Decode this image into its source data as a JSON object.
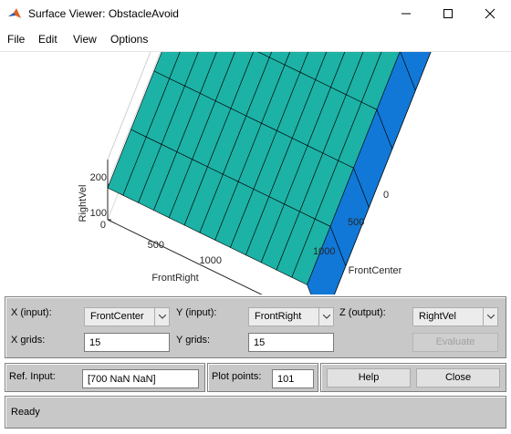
{
  "window": {
    "title": "Surface Viewer: ObstacleAvoid",
    "icon": "matlab-icon"
  },
  "menu": [
    "File",
    "Edit",
    "View",
    "Options"
  ],
  "plot": {
    "zlabel": "RightVel",
    "xlabel": "FrontCenter",
    "ylabel": "FrontRight",
    "z_ticks": [
      "100",
      "200"
    ],
    "y_ticks": [
      "0",
      "500",
      "1000"
    ],
    "x_ticks": [
      "0",
      "500",
      "1000"
    ]
  },
  "chart_data": {
    "type": "surface",
    "xlabel": "FrontCenter",
    "ylabel": "FrontRight",
    "zlabel": "RightVel",
    "xlim": [
      0,
      1400
    ],
    "ylim": [
      0,
      1400
    ],
    "zlim": [
      100,
      270
    ],
    "x_ticks": [
      0,
      500,
      1000
    ],
    "y_ticks": [
      0,
      500,
      1000
    ],
    "z_ticks": [
      100,
      200
    ],
    "grid_x": [
      0,
      100,
      200,
      300,
      400,
      500,
      600,
      700,
      800,
      900,
      1000,
      1100,
      1200,
      1300,
      1400
    ],
    "grid_y": [
      0,
      100,
      200,
      300,
      400,
      500,
      600,
      700,
      800,
      900,
      1000,
      1100,
      1200,
      1300,
      1400
    ],
    "surface_z_by_y_row": [
      [
        250,
        250,
        250,
        250,
        250,
        240,
        210,
        210,
        210,
        190,
        190,
        190,
        190,
        190,
        190
      ],
      [
        250,
        250,
        250,
        250,
        250,
        240,
        210,
        210,
        210,
        190,
        190,
        190,
        190,
        190,
        190
      ],
      [
        250,
        250,
        250,
        250,
        250,
        240,
        210,
        210,
        210,
        190,
        190,
        190,
        190,
        190,
        190
      ],
      [
        250,
        250,
        250,
        250,
        250,
        240,
        210,
        210,
        210,
        190,
        190,
        190,
        190,
        190,
        190
      ],
      [
        250,
        250,
        250,
        250,
        250,
        240,
        210,
        210,
        210,
        190,
        190,
        190,
        190,
        190,
        190
      ],
      [
        250,
        250,
        250,
        250,
        250,
        240,
        210,
        210,
        210,
        190,
        190,
        190,
        190,
        190,
        190
      ],
      [
        250,
        250,
        250,
        250,
        250,
        240,
        210,
        210,
        210,
        190,
        190,
        190,
        190,
        190,
        190
      ],
      [
        250,
        250,
        250,
        250,
        250,
        240,
        210,
        210,
        210,
        190,
        190,
        190,
        190,
        190,
        190
      ],
      [
        250,
        250,
        250,
        250,
        250,
        240,
        210,
        210,
        210,
        190,
        190,
        190,
        190,
        190,
        190
      ],
      [
        250,
        250,
        250,
        250,
        250,
        240,
        210,
        210,
        210,
        190,
        190,
        190,
        190,
        190,
        190
      ],
      [
        250,
        250,
        250,
        250,
        250,
        240,
        210,
        210,
        210,
        190,
        190,
        190,
        190,
        190,
        190
      ],
      [
        250,
        250,
        250,
        250,
        250,
        240,
        210,
        210,
        210,
        190,
        190,
        190,
        190,
        190,
        190
      ],
      [
        250,
        250,
        250,
        250,
        250,
        240,
        210,
        210,
        210,
        190,
        190,
        190,
        190,
        190,
        190
      ],
      [
        250,
        250,
        250,
        250,
        250,
        240,
        210,
        210,
        210,
        190,
        190,
        190,
        190,
        190,
        190
      ],
      [
        100,
        100,
        100,
        100,
        100,
        100,
        100,
        100,
        100,
        100,
        100,
        100,
        100,
        100,
        100
      ]
    ],
    "grid": true
  },
  "controls": {
    "x_input_label": "X (input):",
    "x_input_value": "FrontCenter",
    "y_input_label": "Y (input):",
    "y_input_value": "FrontRight",
    "z_output_label": "Z (output):",
    "z_output_value": "RightVel",
    "x_grids_label": "X grids:",
    "x_grids_value": "15",
    "y_grids_label": "Y grids:",
    "y_grids_value": "15",
    "evaluate_label": "Evaluate",
    "ref_input_label": "Ref. Input:",
    "ref_input_value": "[700 NaN NaN]",
    "plot_points_label": "Plot points:",
    "plot_points_value": "101",
    "help_label": "Help",
    "close_label": "Close"
  },
  "status": {
    "text": "Ready"
  }
}
